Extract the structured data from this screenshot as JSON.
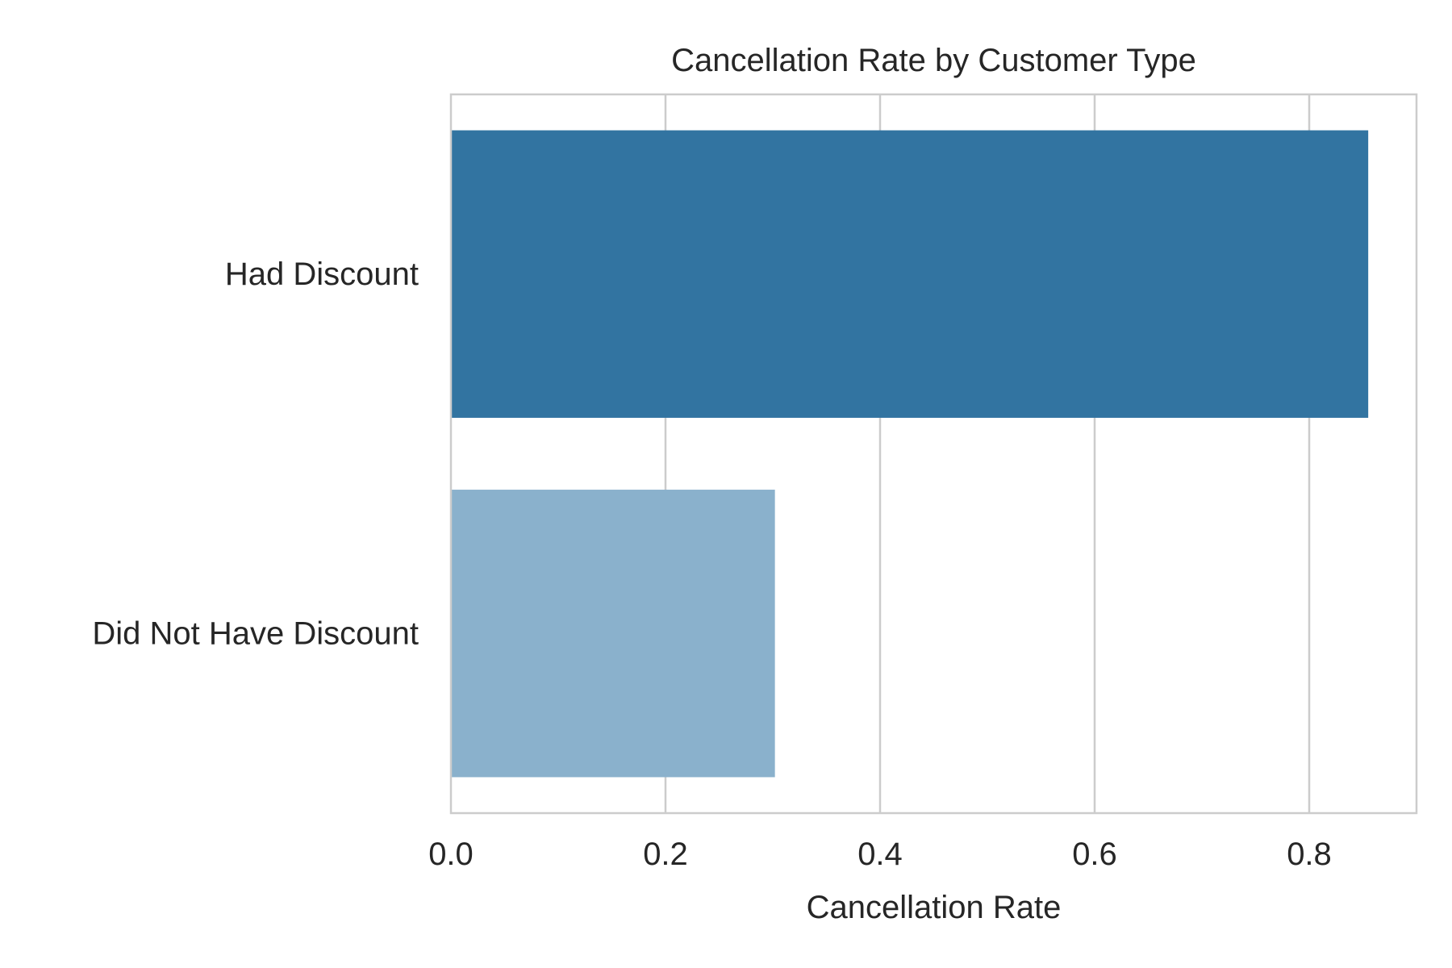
{
  "chart_data": {
    "type": "bar",
    "orientation": "horizontal",
    "title": "Cancellation Rate by Customer Type",
    "xlabel": "Cancellation Rate",
    "ylabel": "",
    "categories": [
      "Had Discount",
      "Did Not Have Discount"
    ],
    "values": [
      0.855,
      0.302
    ],
    "colors": [
      "#3274a1",
      "#8ab1cc"
    ],
    "xlim": [
      0,
      0.9
    ],
    "xticks": [
      0.0,
      0.2,
      0.4,
      0.6,
      0.8
    ],
    "xtick_labels": [
      "0.0",
      "0.2",
      "0.4",
      "0.6",
      "0.8"
    ],
    "grid": "vertical",
    "grid_color": "#cccccc",
    "axis_color": "#cccccc",
    "text_color": "#262626",
    "legend": "none"
  }
}
